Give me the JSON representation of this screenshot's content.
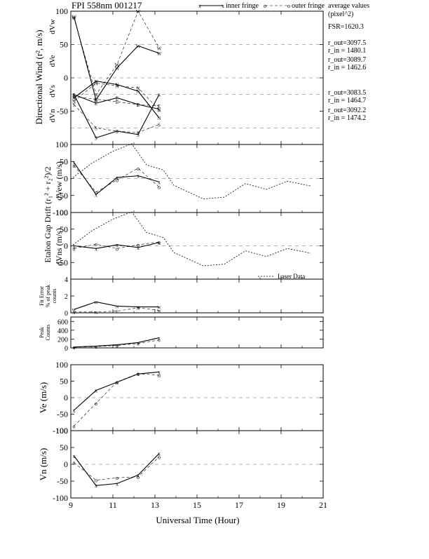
{
  "header": {
    "title": "FPI 558nm 001217",
    "legend_inner": "inner fringe",
    "legend_outer": "outer fringe",
    "avg_line1": "average values",
    "avg_line2": "(pixel^2)",
    "fsr": "FSR=1620.3",
    "values": [
      "r_out=3097.5",
      "r_in = 1480.1",
      "r_out=3089.7",
      "r_in = 1462.6",
      "r_out=3083.5",
      "r_in = 1464.7",
      "r_out=3092.2",
      "r_in = 1474.2"
    ]
  },
  "xaxis": {
    "label": "Universal Time (Hour)",
    "range": [
      9,
      21
    ],
    "ticks": [
      9,
      11,
      13,
      15,
      17,
      19,
      21
    ]
  },
  "chart_data": [
    {
      "type": "line",
      "panel": "directional_wind",
      "ylabel": "Directional Wind (r², m/s)",
      "sublabels": [
        "dVw",
        "dVe",
        "dVs",
        "dVn"
      ],
      "ylim": [
        -100,
        100
      ],
      "yticks": [
        -50,
        0,
        50,
        100
      ],
      "series": [
        {
          "name": "inner fringe",
          "values": [
            {
              "code": "W",
              "x": [
                9.15,
                10.2,
                11.2,
                12.2,
                13.2
              ],
              "y": [
                92,
                -33,
                15,
                48,
                37
              ]
            },
            {
              "code": "E",
              "x": [
                9.15,
                10.2,
                11.2,
                12.2,
                13.2
              ],
              "y": [
                -25,
                -38,
                -30,
                -40,
                -47
              ]
            },
            {
              "code": "S",
              "x": [
                9.15,
                10.2,
                11.2,
                12.2,
                13.2
              ],
              "y": [
                -25,
                -90,
                -80,
                -85,
                -25
              ]
            },
            {
              "code": "N",
              "x": [
                9.15,
                10.2,
                11.2,
                12.2,
                13.2
              ],
              "y": [
                -30,
                -5,
                -10,
                -20,
                -60
              ]
            }
          ]
        },
        {
          "name": "outer fringe",
          "values": [
            {
              "code": "W",
              "x": [
                9.15,
                10.2,
                11.2,
                12.2,
                13.2
              ],
              "y": [
                90,
                -25,
                20,
                100,
                45
              ]
            },
            {
              "code": "E",
              "x": [
                9.15,
                10.2,
                11.2,
                12.2,
                13.2
              ],
              "y": [
                -28,
                -32,
                -36,
                -40,
                -42
              ]
            },
            {
              "code": "S",
              "x": [
                9.15,
                10.2,
                11.2,
                12.2,
                13.2
              ],
              "y": [
                -40,
                -75,
                -80,
                -82,
                -70
              ]
            },
            {
              "code": "N",
              "x": [
                9.15,
                10.2,
                11.2,
                12.2,
                13.2
              ],
              "y": [
                -35,
                -8,
                -12,
                -15,
                -48
              ]
            }
          ]
        }
      ]
    },
    {
      "type": "line",
      "panel": "dvew",
      "ylabel": "dVew (m/s)",
      "ylim": [
        -100,
        100
      ],
      "yticks": [
        -100,
        -50,
        0,
        50,
        100
      ],
      "series": [
        {
          "name": "inner fringe",
          "x": [
            9.15,
            10.2,
            11.2,
            12.2,
            13.2
          ],
          "y": [
            47,
            -47,
            3,
            8,
            -10
          ]
        },
        {
          "name": "outer fringe",
          "x": [
            9.15,
            10.2,
            11.2,
            12.2,
            13.2
          ],
          "y": [
            38,
            -40,
            -4,
            30,
            -25
          ]
        },
        {
          "name": "Laser Data",
          "x": [
            9.0,
            10.0,
            11.0,
            11.9,
            12.6,
            13.4,
            13.9,
            15.3,
            16.3,
            17.3,
            18.3,
            19.3,
            20.4
          ],
          "y": [
            -2,
            45,
            80,
            102,
            40,
            25,
            -20,
            -60,
            -55,
            -15,
            -32,
            -8,
            -22
          ]
        }
      ]
    },
    {
      "type": "line",
      "panel": "dvns",
      "ylabel": "dVns (m/s)",
      "group_label": "Etalon Gap Drift (r₁² + r₂²)/2",
      "ylim": [
        -100,
        100
      ],
      "yticks": [
        -50,
        0,
        50,
        100
      ],
      "series": [
        {
          "name": "inner fringe",
          "x": [
            9.15,
            10.2,
            11.2,
            12.2,
            13.2
          ],
          "y": [
            0,
            -8,
            3,
            -5,
            10
          ]
        },
        {
          "name": "outer fringe",
          "x": [
            9.15,
            10.2,
            11.2,
            12.2,
            13.2
          ],
          "y": [
            -8,
            5,
            -8,
            3,
            12
          ]
        },
        {
          "name": "Laser Data",
          "x": [
            9.0,
            10.0,
            11.0,
            11.9,
            12.6,
            13.4,
            13.9,
            15.3,
            16.3,
            17.3,
            18.3,
            19.3,
            20.4
          ],
          "y": [
            -2,
            45,
            80,
            102,
            40,
            25,
            -20,
            -60,
            -55,
            -15,
            -32,
            -8,
            -22
          ]
        }
      ],
      "legend_text": "Laser Data"
    },
    {
      "type": "line",
      "panel": "fit_error",
      "ylabel_lines": [
        "Fit Error",
        "% of peak",
        "counts"
      ],
      "ylim": [
        0,
        4
      ],
      "yticks": [
        0,
        2,
        4
      ],
      "series": [
        {
          "name": "inner",
          "codes": [
            "W",
            "W",
            "N",
            "N",
            "W"
          ],
          "x": [
            9.15,
            10.2,
            11.2,
            12.2,
            13.2
          ],
          "y": [
            0.4,
            1.3,
            0.8,
            0.7,
            0.7
          ]
        },
        {
          "name": "outer",
          "codes": [
            "N",
            "N",
            "E",
            "N",
            "W"
          ],
          "x": [
            9.15,
            10.2,
            11.2,
            12.2,
            13.2
          ],
          "y": [
            0.1,
            0.1,
            0.2,
            0.6,
            0.3
          ]
        }
      ]
    },
    {
      "type": "line",
      "panel": "peak_counts",
      "ylabel_lines": [
        "Peak",
        "Counts"
      ],
      "ylim": [
        0,
        700
      ],
      "yticks": [
        0,
        200,
        400,
        600
      ],
      "series": [
        {
          "name": "inner fringe",
          "x": [
            9.15,
            10.2,
            11.2,
            12.2,
            13.2
          ],
          "y": [
            20,
            40,
            70,
            120,
            230
          ]
        },
        {
          "name": "outer fringe",
          "x": [
            9.15,
            10.2,
            11.2,
            12.2,
            13.2
          ],
          "y": [
            15,
            30,
            55,
            100,
            180
          ]
        }
      ]
    },
    {
      "type": "line",
      "panel": "ve",
      "ylabel": "Ve (m/s)",
      "ylim": [
        -100,
        100
      ],
      "yticks": [
        -100,
        -50,
        0,
        50,
        100
      ],
      "series": [
        {
          "name": "inner fringe",
          "x": [
            9.15,
            10.2,
            11.2,
            12.2,
            13.2
          ],
          "y": [
            -38,
            22,
            47,
            72,
            78
          ]
        },
        {
          "name": "outer fringe",
          "x": [
            9.15,
            10.2,
            11.2,
            12.2,
            13.2
          ],
          "y": [
            -86,
            -17,
            48,
            73,
            68
          ]
        }
      ]
    },
    {
      "type": "line",
      "panel": "vn",
      "ylabel": "Vn (m/s)",
      "ylim": [
        -100,
        100
      ],
      "yticks": [
        -100,
        -50,
        0,
        50,
        100
      ],
      "series": [
        {
          "name": "inner fringe",
          "x": [
            9.15,
            10.2,
            11.2,
            12.2,
            13.2
          ],
          "y": [
            25,
            -63,
            -57,
            -32,
            32
          ]
        },
        {
          "name": "outer fringe",
          "x": [
            9.15,
            10.2,
            11.2,
            12.2,
            13.2
          ],
          "y": [
            5,
            -47,
            -40,
            -37,
            22
          ]
        }
      ]
    }
  ]
}
